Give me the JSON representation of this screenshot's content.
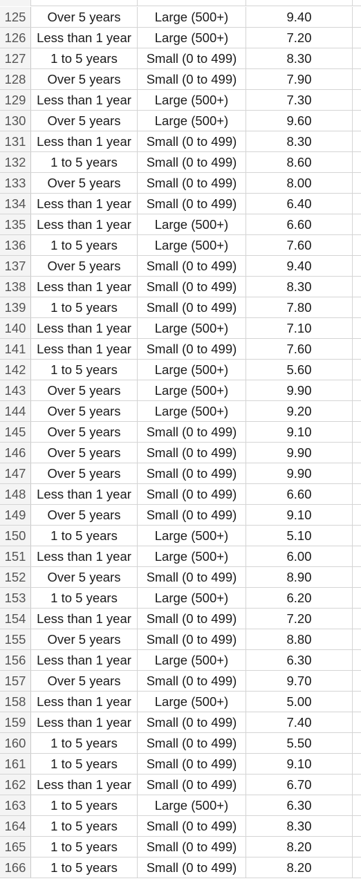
{
  "sheet": {
    "rows": [
      {
        "num": "125",
        "tenure": "Over 5 years",
        "size": "Large (500+)",
        "score": "9.40"
      },
      {
        "num": "126",
        "tenure": "Less than 1 year",
        "size": "Large (500+)",
        "score": "7.20"
      },
      {
        "num": "127",
        "tenure": "1 to 5 years",
        "size": "Small (0 to 499)",
        "score": "8.30"
      },
      {
        "num": "128",
        "tenure": "Over 5 years",
        "size": "Small (0 to 499)",
        "score": "7.90"
      },
      {
        "num": "129",
        "tenure": "Less than 1 year",
        "size": "Large (500+)",
        "score": "7.30"
      },
      {
        "num": "130",
        "tenure": "Over 5 years",
        "size": "Large (500+)",
        "score": "9.60"
      },
      {
        "num": "131",
        "tenure": "Less than 1 year",
        "size": "Small (0 to 499)",
        "score": "8.30"
      },
      {
        "num": "132",
        "tenure": "1 to 5 years",
        "size": "Small (0 to 499)",
        "score": "8.60"
      },
      {
        "num": "133",
        "tenure": "Over 5 years",
        "size": "Small (0 to 499)",
        "score": "8.00"
      },
      {
        "num": "134",
        "tenure": "Less than 1 year",
        "size": "Small (0 to 499)",
        "score": "6.40"
      },
      {
        "num": "135",
        "tenure": "Less than 1 year",
        "size": "Large (500+)",
        "score": "6.60"
      },
      {
        "num": "136",
        "tenure": "1 to 5 years",
        "size": "Large (500+)",
        "score": "7.60"
      },
      {
        "num": "137",
        "tenure": "Over 5 years",
        "size": "Small (0 to 499)",
        "score": "9.40"
      },
      {
        "num": "138",
        "tenure": "Less than 1 year",
        "size": "Small (0 to 499)",
        "score": "8.30"
      },
      {
        "num": "139",
        "tenure": "1 to 5 years",
        "size": "Small (0 to 499)",
        "score": "7.80"
      },
      {
        "num": "140",
        "tenure": "Less than 1 year",
        "size": "Large (500+)",
        "score": "7.10"
      },
      {
        "num": "141",
        "tenure": "Less than 1 year",
        "size": "Small (0 to 499)",
        "score": "7.60"
      },
      {
        "num": "142",
        "tenure": "1 to 5 years",
        "size": "Large (500+)",
        "score": "5.60"
      },
      {
        "num": "143",
        "tenure": "Over 5 years",
        "size": "Large (500+)",
        "score": "9.90"
      },
      {
        "num": "144",
        "tenure": "Over 5 years",
        "size": "Large (500+)",
        "score": "9.20"
      },
      {
        "num": "145",
        "tenure": "Over 5 years",
        "size": "Small (0 to 499)",
        "score": "9.10"
      },
      {
        "num": "146",
        "tenure": "Over 5 years",
        "size": "Small (0 to 499)",
        "score": "9.90"
      },
      {
        "num": "147",
        "tenure": "Over 5 years",
        "size": "Small (0 to 499)",
        "score": "9.90"
      },
      {
        "num": "148",
        "tenure": "Less than 1 year",
        "size": "Small (0 to 499)",
        "score": "6.60"
      },
      {
        "num": "149",
        "tenure": "Over 5 years",
        "size": "Small (0 to 499)",
        "score": "9.10"
      },
      {
        "num": "150",
        "tenure": "1 to 5 years",
        "size": "Large (500+)",
        "score": "5.10"
      },
      {
        "num": "151",
        "tenure": "Less than 1 year",
        "size": "Large (500+)",
        "score": "6.00"
      },
      {
        "num": "152",
        "tenure": "Over 5 years",
        "size": "Small (0 to 499)",
        "score": "8.90"
      },
      {
        "num": "153",
        "tenure": "1 to 5 years",
        "size": "Large (500+)",
        "score": "6.20"
      },
      {
        "num": "154",
        "tenure": "Less than 1 year",
        "size": "Small (0 to 499)",
        "score": "7.20"
      },
      {
        "num": "155",
        "tenure": "Over 5 years",
        "size": "Small (0 to 499)",
        "score": "8.80"
      },
      {
        "num": "156",
        "tenure": "Less than 1 year",
        "size": "Large (500+)",
        "score": "6.30"
      },
      {
        "num": "157",
        "tenure": "Over 5 years",
        "size": "Small (0 to 499)",
        "score": "9.70"
      },
      {
        "num": "158",
        "tenure": "Less than 1 year",
        "size": "Large (500+)",
        "score": "5.00"
      },
      {
        "num": "159",
        "tenure": "Less than 1 year",
        "size": "Small (0 to 499)",
        "score": "7.40"
      },
      {
        "num": "160",
        "tenure": "1 to 5 years",
        "size": "Small (0 to 499)",
        "score": "5.50"
      },
      {
        "num": "161",
        "tenure": "1 to 5 years",
        "size": "Small (0 to 499)",
        "score": "9.10"
      },
      {
        "num": "162",
        "tenure": "Less than 1 year",
        "size": "Small (0 to 499)",
        "score": "6.70"
      },
      {
        "num": "163",
        "tenure": "1 to 5 years",
        "size": "Large (500+)",
        "score": "6.30"
      },
      {
        "num": "164",
        "tenure": "1 to 5 years",
        "size": "Small (0 to 499)",
        "score": "8.30"
      },
      {
        "num": "165",
        "tenure": "1 to 5 years",
        "size": "Small (0 to 499)",
        "score": "8.20"
      },
      {
        "num": "166",
        "tenure": "1 to 5 years",
        "size": "Small (0 to 499)",
        "score": "8.20"
      }
    ]
  }
}
